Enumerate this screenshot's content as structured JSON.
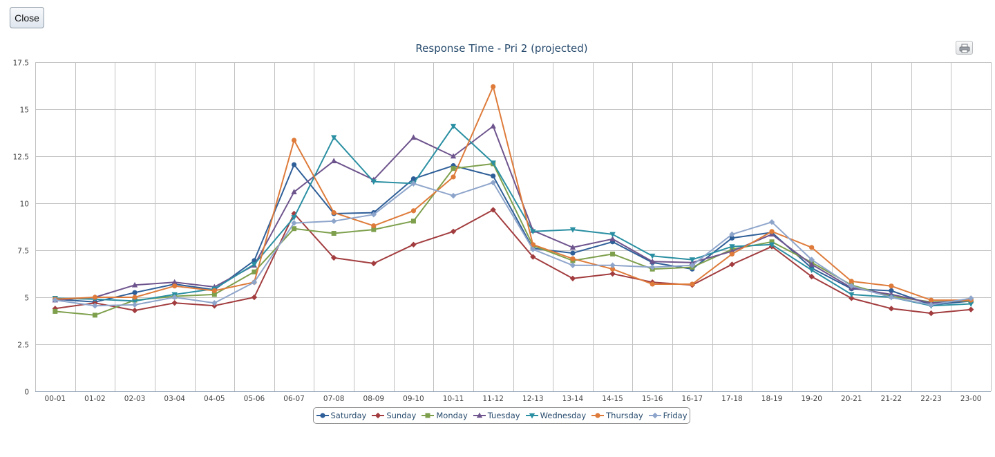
{
  "close_label": "Close",
  "chart_data": {
    "type": "line",
    "title": "Response Time - Pri 2 (projected)",
    "xlabel": "",
    "ylabel": "",
    "ylim": [
      0,
      17.5
    ],
    "yticks": [
      0,
      2.5,
      5,
      7.5,
      10,
      12.5,
      15,
      17.5
    ],
    "ytick_labels": [
      "0",
      "2.5",
      "5",
      "7.5",
      "10",
      "12.5",
      "15",
      "17.5"
    ],
    "grid": true,
    "legend_position": "bottom-center",
    "categories": [
      "00-01",
      "01-02",
      "02-03",
      "03-04",
      "04-05",
      "05-06",
      "06-07",
      "07-08",
      "08-09",
      "09-10",
      "10-11",
      "11-12",
      "12-13",
      "13-14",
      "14-15",
      "15-16",
      "16-17",
      "17-18",
      "18-19",
      "19-20",
      "20-21",
      "21-22",
      "22-23",
      "23-00"
    ],
    "series": [
      {
        "name": "Saturday",
        "color": "#2f5f98",
        "marker": "circle",
        "values": [
          4.9,
          4.75,
          5.25,
          5.7,
          5.4,
          6.95,
          12.05,
          9.45,
          9.5,
          11.3,
          12.0,
          11.45,
          7.6,
          7.35,
          7.95,
          6.85,
          6.5,
          8.15,
          8.45,
          6.55,
          5.45,
          5.35,
          4.6,
          4.8
        ]
      },
      {
        "name": "Sunday",
        "color": "#a23c3e",
        "marker": "diamond",
        "values": [
          4.4,
          4.7,
          4.3,
          4.7,
          4.55,
          5.0,
          9.45,
          7.1,
          6.8,
          7.8,
          8.5,
          9.65,
          7.15,
          6.0,
          6.25,
          5.8,
          5.65,
          6.75,
          7.7,
          6.1,
          4.95,
          4.4,
          4.15,
          4.35
        ]
      },
      {
        "name": "Monday",
        "color": "#7ea04d",
        "marker": "square",
        "values": [
          4.25,
          4.05,
          4.85,
          5.05,
          5.15,
          6.35,
          8.65,
          8.4,
          8.6,
          9.05,
          11.85,
          12.1,
          7.75,
          6.95,
          7.3,
          6.5,
          6.6,
          7.55,
          7.95,
          6.85,
          5.65,
          5.05,
          4.75,
          4.8
        ]
      },
      {
        "name": "Tuesday",
        "color": "#6e548d",
        "marker": "triangle",
        "values": [
          4.85,
          5.0,
          5.65,
          5.8,
          5.55,
          6.7,
          10.6,
          12.25,
          11.25,
          13.5,
          12.5,
          14.1,
          8.55,
          7.65,
          8.1,
          6.9,
          6.85,
          7.45,
          8.35,
          6.75,
          5.5,
          5.15,
          4.7,
          4.85
        ]
      },
      {
        "name": "Wednesday",
        "color": "#2a8fa2",
        "marker": "triangle-down",
        "values": [
          4.95,
          4.9,
          4.8,
          5.15,
          5.45,
          6.75,
          9.25,
          13.5,
          11.15,
          11.05,
          14.1,
          12.15,
          8.5,
          8.6,
          8.35,
          7.2,
          7.0,
          7.7,
          7.8,
          6.45,
          5.15,
          5.0,
          4.55,
          4.65
        ]
      },
      {
        "name": "Thursday",
        "color": "#de7b3a",
        "marker": "circle",
        "values": [
          4.9,
          5.0,
          5.0,
          5.6,
          5.35,
          5.8,
          13.35,
          9.5,
          8.8,
          9.6,
          11.4,
          16.2,
          7.8,
          7.05,
          6.5,
          5.7,
          5.7,
          7.3,
          8.5,
          7.65,
          5.85,
          5.6,
          4.85,
          4.85
        ]
      },
      {
        "name": "Friday",
        "color": "#8ea5cb",
        "marker": "diamond",
        "values": [
          4.85,
          4.55,
          4.6,
          5.0,
          4.7,
          5.8,
          8.95,
          9.05,
          9.4,
          11.05,
          10.4,
          11.1,
          7.55,
          6.7,
          6.7,
          6.6,
          6.7,
          8.35,
          9.0,
          7.0,
          5.6,
          5.0,
          4.6,
          4.95
        ]
      }
    ]
  }
}
